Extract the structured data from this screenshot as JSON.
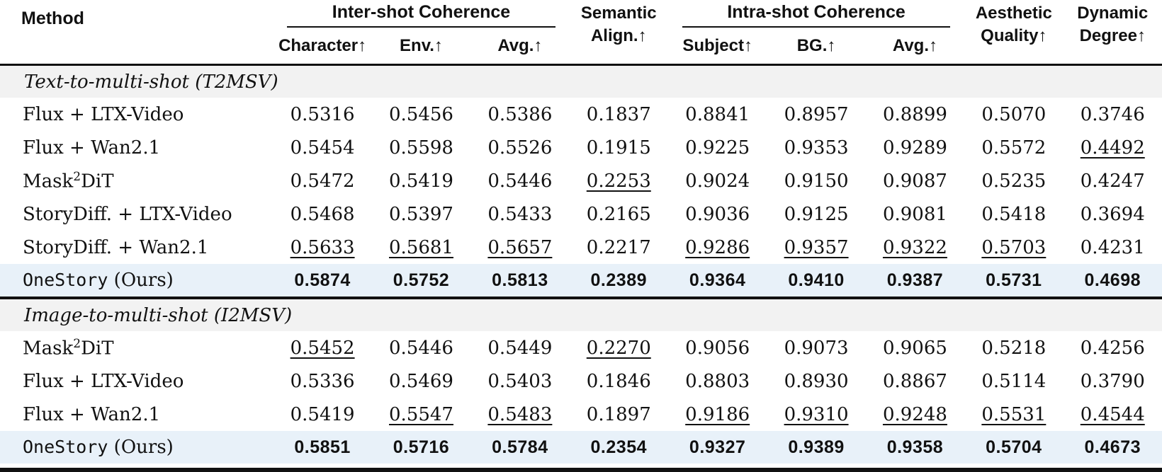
{
  "colors": {
    "highlight_row_bg": "#e8f1f9",
    "section_band_bg": "#f2f2f2",
    "rule_color": "#111111",
    "text_color": "#111111"
  },
  "header": {
    "method": "Method",
    "inter_group": "Inter-shot Coherence",
    "intra_group": "Intra-shot Coherence",
    "semantic": [
      "Semantic",
      "Align.↑"
    ],
    "aesthetic": [
      "Aesthetic",
      "Quality↑"
    ],
    "dynamic": [
      "Dynamic",
      "Degree↑"
    ],
    "sub": [
      "Character↑",
      "Env.↑",
      "Avg.↑",
      "Subject↑",
      "BG.↑",
      "Avg.↑"
    ]
  },
  "sections": [
    {
      "title": "Text-to-multi-shot (T2MSV)",
      "rows": [
        {
          "method": [
            {
              "t": "Flux + LTX-Video"
            }
          ],
          "highlight": false,
          "values": [
            {
              "v": "0.5316"
            },
            {
              "v": "0.5456"
            },
            {
              "v": "0.5386"
            },
            {
              "v": "0.1837"
            },
            {
              "v": "0.8841"
            },
            {
              "v": "0.8957"
            },
            {
              "v": "0.8899"
            },
            {
              "v": "0.5070"
            },
            {
              "v": "0.3746"
            }
          ]
        },
        {
          "method": [
            {
              "t": "Flux + Wan2.1"
            }
          ],
          "highlight": false,
          "values": [
            {
              "v": "0.5454"
            },
            {
              "v": "0.5598"
            },
            {
              "v": "0.5526"
            },
            {
              "v": "0.1915"
            },
            {
              "v": "0.9225"
            },
            {
              "v": "0.9353"
            },
            {
              "v": "0.9289"
            },
            {
              "v": "0.5572"
            },
            {
              "v": "0.4492",
              "u": true
            }
          ]
        },
        {
          "method": [
            {
              "t": "Mask"
            },
            {
              "t": "2",
              "sup": true
            },
            {
              "t": "DiT"
            }
          ],
          "highlight": false,
          "values": [
            {
              "v": "0.5472"
            },
            {
              "v": "0.5419"
            },
            {
              "v": "0.5446"
            },
            {
              "v": "0.2253",
              "u": true
            },
            {
              "v": "0.9024"
            },
            {
              "v": "0.9150"
            },
            {
              "v": "0.9087"
            },
            {
              "v": "0.5235"
            },
            {
              "v": "0.4247"
            }
          ]
        },
        {
          "method": [
            {
              "t": "StoryDiff. + LTX-Video"
            }
          ],
          "highlight": false,
          "values": [
            {
              "v": "0.5468"
            },
            {
              "v": "0.5397"
            },
            {
              "v": "0.5433"
            },
            {
              "v": "0.2165"
            },
            {
              "v": "0.9036"
            },
            {
              "v": "0.9125"
            },
            {
              "v": "0.9081"
            },
            {
              "v": "0.5418"
            },
            {
              "v": "0.3694"
            }
          ]
        },
        {
          "method": [
            {
              "t": "StoryDiff. + Wan2.1"
            }
          ],
          "highlight": false,
          "values": [
            {
              "v": "0.5633",
              "u": true
            },
            {
              "v": "0.5681",
              "u": true
            },
            {
              "v": "0.5657",
              "u": true
            },
            {
              "v": "0.2217"
            },
            {
              "v": "0.9286",
              "u": true
            },
            {
              "v": "0.9357",
              "u": true
            },
            {
              "v": "0.9322",
              "u": true
            },
            {
              "v": "0.5703",
              "u": true
            },
            {
              "v": "0.4231"
            }
          ]
        },
        {
          "method": [
            {
              "t": "OneStory",
              "tt": true
            },
            {
              "t": " (Ours)"
            }
          ],
          "highlight": true,
          "values": [
            {
              "v": "0.5874"
            },
            {
              "v": "0.5752"
            },
            {
              "v": "0.5813"
            },
            {
              "v": "0.2389"
            },
            {
              "v": "0.9364"
            },
            {
              "v": "0.9410"
            },
            {
              "v": "0.9387"
            },
            {
              "v": "0.5731"
            },
            {
              "v": "0.4698"
            }
          ]
        }
      ]
    },
    {
      "title": "Image-to-multi-shot (I2MSV)",
      "rows": [
        {
          "method": [
            {
              "t": "Mask"
            },
            {
              "t": "2",
              "sup": true
            },
            {
              "t": "DiT"
            }
          ],
          "highlight": false,
          "values": [
            {
              "v": "0.5452",
              "u": true
            },
            {
              "v": "0.5446"
            },
            {
              "v": "0.5449"
            },
            {
              "v": "0.2270",
              "u": true
            },
            {
              "v": "0.9056"
            },
            {
              "v": "0.9073"
            },
            {
              "v": "0.9065"
            },
            {
              "v": "0.5218"
            },
            {
              "v": "0.4256"
            }
          ]
        },
        {
          "method": [
            {
              "t": "Flux + LTX-Video"
            }
          ],
          "highlight": false,
          "values": [
            {
              "v": "0.5336"
            },
            {
              "v": "0.5469"
            },
            {
              "v": "0.5403"
            },
            {
              "v": "0.1846"
            },
            {
              "v": "0.8803"
            },
            {
              "v": "0.8930"
            },
            {
              "v": "0.8867"
            },
            {
              "v": "0.5114"
            },
            {
              "v": "0.3790"
            }
          ]
        },
        {
          "method": [
            {
              "t": "Flux + Wan2.1"
            }
          ],
          "highlight": false,
          "values": [
            {
              "v": "0.5419"
            },
            {
              "v": "0.5547",
              "u": true
            },
            {
              "v": "0.5483",
              "u": true
            },
            {
              "v": "0.1897"
            },
            {
              "v": "0.9186",
              "u": true
            },
            {
              "v": "0.9310",
              "u": true
            },
            {
              "v": "0.9248",
              "u": true
            },
            {
              "v": "0.5531",
              "u": true
            },
            {
              "v": "0.4544",
              "u": true
            }
          ]
        },
        {
          "method": [
            {
              "t": "OneStory",
              "tt": true
            },
            {
              "t": " (Ours)"
            }
          ],
          "highlight": true,
          "values": [
            {
              "v": "0.5851"
            },
            {
              "v": "0.5716"
            },
            {
              "v": "0.5784"
            },
            {
              "v": "0.2354"
            },
            {
              "v": "0.9327"
            },
            {
              "v": "0.9389"
            },
            {
              "v": "0.9358"
            },
            {
              "v": "0.5704"
            },
            {
              "v": "0.4673"
            }
          ]
        }
      ]
    }
  ]
}
